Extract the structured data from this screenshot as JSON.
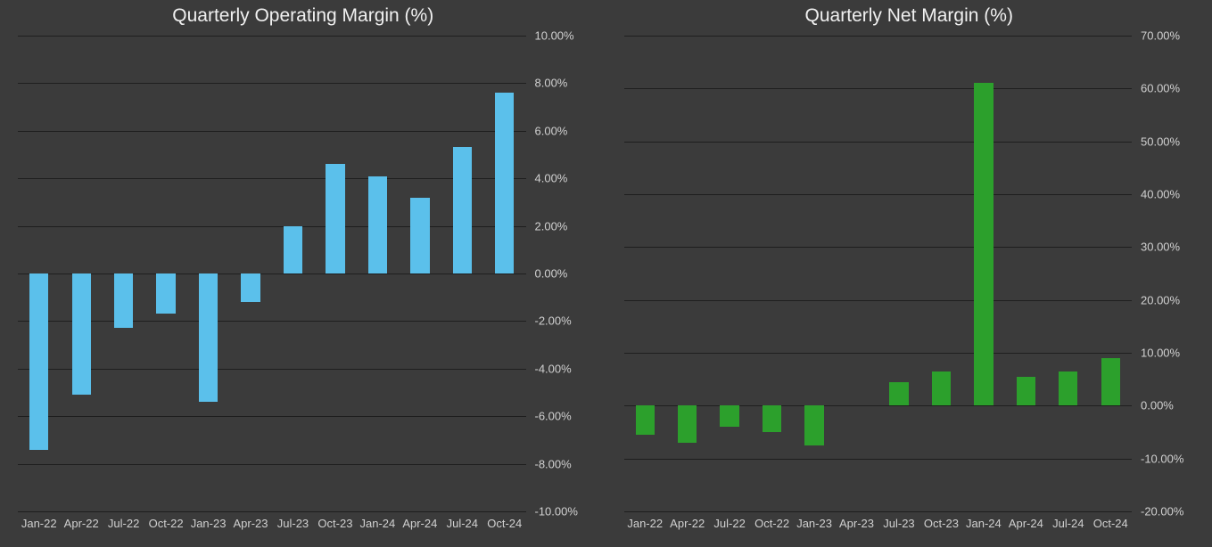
{
  "background_color": "#3b3b3b",
  "grid_color": "#1e1e1e",
  "text_color": "#d0d0d0",
  "title_color": "#f0f0f0",
  "title_fontsize": 21,
  "label_fontsize": 13,
  "categories": [
    "Jan-22",
    "Apr-22",
    "Jul-22",
    "Oct-22",
    "Jan-23",
    "Apr-23",
    "Jul-23",
    "Oct-23",
    "Jan-24",
    "Apr-24",
    "Jul-24",
    "Oct-24"
  ],
  "charts": [
    {
      "id": "operating-margin",
      "type": "bar",
      "title": "Quarterly Operating Margin (%)",
      "bar_color": "#5bc0eb",
      "bar_width_ratio": 0.45,
      "ymin": -10,
      "ymax": 10,
      "ytick_step": 2,
      "ylabel_suffix": "%",
      "ylabel_decimals": 2,
      "values": [
        -7.4,
        -5.1,
        -2.3,
        -1.7,
        -5.4,
        -1.2,
        2.0,
        4.6,
        4.1,
        3.2,
        5.3,
        7.6
      ]
    },
    {
      "id": "net-margin",
      "type": "bar",
      "title": "Quarterly Net Margin (%)",
      "bar_color": "#2ca02c",
      "bar_width_ratio": 0.45,
      "ymin": -20,
      "ymax": 70,
      "ytick_step": 10,
      "ylabel_suffix": "%",
      "ylabel_decimals": 2,
      "values": [
        -5.5,
        -7.0,
        -4.0,
        -5.0,
        -7.5,
        0.0,
        4.5,
        6.5,
        61.0,
        5.5,
        6.5,
        9.0
      ]
    }
  ]
}
